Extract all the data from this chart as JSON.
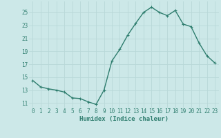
{
  "x": [
    0,
    1,
    2,
    3,
    4,
    5,
    6,
    7,
    8,
    9,
    10,
    11,
    12,
    13,
    14,
    15,
    16,
    17,
    18,
    19,
    20,
    21,
    22,
    23
  ],
  "y": [
    14.5,
    13.5,
    13.2,
    13.0,
    12.7,
    11.8,
    11.7,
    11.2,
    10.8,
    13.0,
    17.5,
    19.3,
    21.5,
    23.3,
    25.0,
    25.8,
    25.0,
    24.5,
    25.3,
    23.2,
    22.8,
    20.3,
    18.3,
    17.2
  ],
  "line_color": "#2e7d6e",
  "bg_color": "#cce8e8",
  "grid_color": "#b8d8d8",
  "xlabel": "Humidex (Indice chaleur)",
  "yticks": [
    11,
    13,
    15,
    17,
    19,
    21,
    23,
    25
  ],
  "ylim": [
    10.3,
    26.7
  ],
  "xlim": [
    -0.5,
    23.5
  ],
  "tick_color": "#2e7d6e",
  "marker": "+",
  "linewidth": 1.0,
  "markersize": 3.5,
  "tick_fontsize": 5.5,
  "xlabel_fontsize": 6.5
}
